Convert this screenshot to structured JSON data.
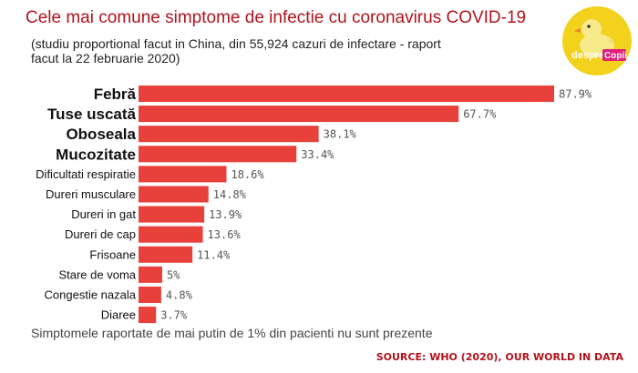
{
  "header": {
    "title": "Cele mai comune simptome de infectie cu coronavirus COVID-19",
    "subtitle": "(studiu proportional facut in China, din 55,924 cazuri de infectare - raport facut la 22 februarie 2020)"
  },
  "logo": {
    "text_prefix": "despre",
    "text_suffix": "Copii",
    "icon": "duck-icon",
    "colors": {
      "background": "#f2d21c",
      "duck": "#f7ea8a",
      "beak": "#e8832a",
      "text_badge": "#e0207a"
    }
  },
  "chart_data": {
    "type": "bar",
    "orientation": "horizontal",
    "title": "",
    "xlabel": "",
    "ylabel": "",
    "xlim": [
      0,
      100
    ],
    "grid": false,
    "bar_color": "#e8413c",
    "value_label_color": "#555555",
    "categories": [
      "Febră",
      "Tuse uscată",
      "Oboseala",
      "Mucozitate",
      "Dificultati respiratie",
      "Dureri musculare",
      "Dureri in gat",
      "Dureri de cap",
      "Frisoane",
      "Stare de voma",
      "Congestie nazala",
      "Diaree"
    ],
    "values": [
      87.9,
      67.7,
      38.1,
      33.4,
      18.6,
      14.8,
      13.9,
      13.6,
      11.4,
      5,
      4.8,
      3.7
    ],
    "value_labels": [
      "87.9%",
      "67.7%",
      "38.1%",
      "33.4%",
      "18.6%",
      "14.8%",
      "13.9%",
      "13.6%",
      "11.4%",
      "5%",
      "4.8%",
      "3.7%"
    ],
    "emphasized_count": 4
  },
  "footer": {
    "note": "Simptomele raportate de mai putin de 1% din pacienti nu sunt prezente",
    "source": "SOURCE: WHO (2020), OUR WORLD IN DATA"
  }
}
